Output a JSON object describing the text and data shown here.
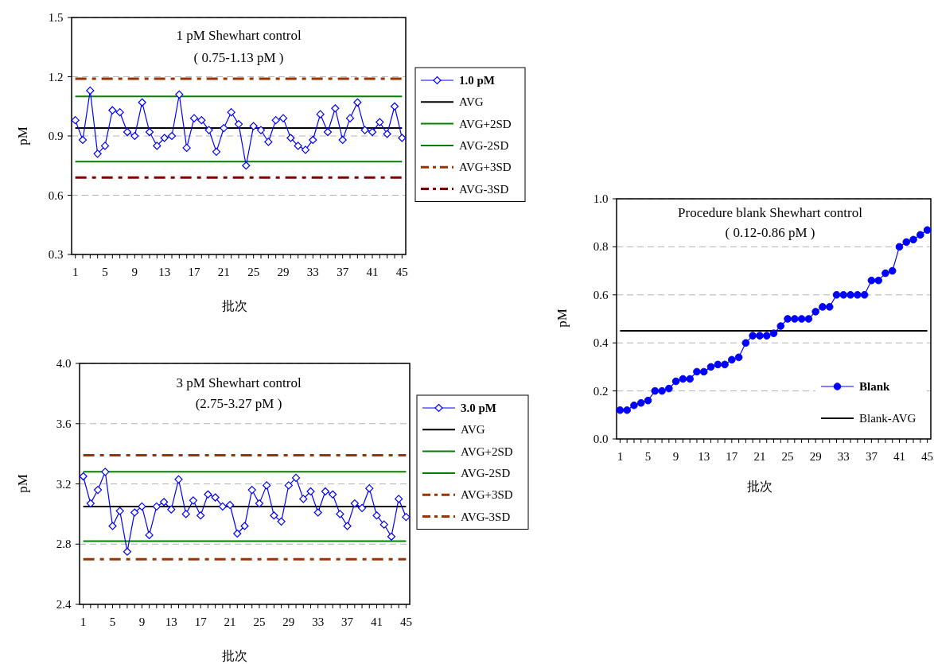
{
  "chart_data": [
    {
      "type": "line",
      "title": "1 pM Shewhart control",
      "subtitle": "( 0.75-1.13 pM )",
      "xlabel": "批次",
      "ylabel": "pM",
      "categories": [
        "1",
        null,
        null,
        null,
        "5",
        null,
        null,
        null,
        "9",
        null,
        null,
        null,
        "13",
        null,
        null,
        null,
        "17",
        null,
        null,
        null,
        "21",
        null,
        null,
        null,
        "25",
        null,
        null,
        null,
        "29",
        null,
        null,
        null,
        "33",
        null,
        null,
        null,
        "37",
        null,
        null,
        null,
        "41",
        null,
        null,
        null,
        "45"
      ],
      "series": [
        {
          "name": "1.0 pM",
          "color": "#0000ff",
          "values": [
            0.98,
            0.88,
            1.13,
            0.81,
            0.85,
            1.03,
            1.02,
            0.92,
            0.9,
            1.07,
            0.92,
            0.85,
            0.89,
            0.9,
            1.11,
            0.84,
            0.99,
            0.98,
            0.93,
            0.82,
            0.94,
            1.02,
            0.96,
            0.75,
            0.95,
            0.93,
            0.87,
            0.98,
            0.99,
            0.89,
            0.85,
            0.83,
            0.88,
            1.01,
            0.92,
            1.04,
            0.88,
            0.99,
            1.07,
            0.93,
            0.92,
            0.97,
            0.91,
            1.05,
            0.89
          ]
        }
      ],
      "ref_lines": [
        {
          "axis": "y",
          "value": 0.94,
          "label": "AVG",
          "color": "#000000",
          "line_style": "solid"
        },
        {
          "axis": "y",
          "value": 1.1,
          "label": "AVG+2SD",
          "color": "#008000",
          "line_style": "solid"
        },
        {
          "axis": "y",
          "value": 0.77,
          "label": "AVG-2SD",
          "color": "#008000",
          "line_style": "solid"
        },
        {
          "axis": "y",
          "value": 1.19,
          "label": "AVG+3SD",
          "color": "#993300",
          "line_style": "dashdot"
        },
        {
          "axis": "y",
          "value": 0.69,
          "label": "AVG-3SD",
          "color": "#800000",
          "line_style": "dashdot"
        }
      ],
      "ylim": [
        0.3,
        1.5
      ],
      "yticks": [
        0.3,
        0.6,
        0.9,
        1.2,
        1.5
      ],
      "grid": "y",
      "legend": "right",
      "marker": "diamond"
    },
    {
      "type": "line",
      "title": "3 pM Shewhart control",
      "subtitle": "(2.75-3.27 pM )",
      "xlabel": "批次",
      "ylabel": "pM",
      "categories": [
        "1",
        null,
        null,
        null,
        "5",
        null,
        null,
        null,
        "9",
        null,
        null,
        null,
        "13",
        null,
        null,
        null,
        "17",
        null,
        null,
        null,
        "21",
        null,
        null,
        null,
        "25",
        null,
        null,
        null,
        "29",
        null,
        null,
        null,
        "33",
        null,
        null,
        null,
        "37",
        null,
        null,
        null,
        "41",
        null,
        null,
        null,
        "45"
      ],
      "series": [
        {
          "name": "3.0 pM",
          "color": "#0000ff",
          "values": [
            3.25,
            3.07,
            3.16,
            3.28,
            2.92,
            3.02,
            2.75,
            3.01,
            3.05,
            2.86,
            3.05,
            3.08,
            3.03,
            3.23,
            3.0,
            3.09,
            2.99,
            3.13,
            3.11,
            3.05,
            3.06,
            2.87,
            2.92,
            3.16,
            3.07,
            3.19,
            2.99,
            2.95,
            3.19,
            3.24,
            3.1,
            3.15,
            3.01,
            3.15,
            3.13,
            3.0,
            2.92,
            3.07,
            3.04,
            3.17,
            2.99,
            2.93,
            2.85,
            3.1,
            2.98
          ]
        }
      ],
      "ref_lines": [
        {
          "axis": "y",
          "value": 3.05,
          "label": "AVG",
          "color": "#000000",
          "line_style": "solid"
        },
        {
          "axis": "y",
          "value": 3.28,
          "label": "AVG+2SD",
          "color": "#008000",
          "line_style": "solid"
        },
        {
          "axis": "y",
          "value": 2.82,
          "label": "AVG-2SD",
          "color": "#008000",
          "line_style": "solid"
        },
        {
          "axis": "y",
          "value": 3.39,
          "label": "AVG+3SD",
          "color": "#993300",
          "line_style": "dashdot"
        },
        {
          "axis": "y",
          "value": 2.7,
          "label": "AVG-3SD",
          "color": "#993300",
          "line_style": "dashdot"
        }
      ],
      "ylim": [
        2.4,
        4.0
      ],
      "yticks": [
        2.4,
        2.8,
        3.2,
        3.6,
        {
          "value": 4.0,
          "label": "4.0"
        }
      ],
      "grid": "y",
      "legend": "right",
      "marker": "diamond"
    },
    {
      "type": "line",
      "title": "Procedure blank Shewhart control",
      "subtitle": "( 0.12-0.86 pM )",
      "xlabel": "批次",
      "ylabel": "pM",
      "categories": [
        "1",
        null,
        null,
        null,
        "5",
        null,
        null,
        null,
        "9",
        null,
        null,
        null,
        "13",
        null,
        null,
        null,
        "17",
        null,
        null,
        null,
        "21",
        null,
        null,
        null,
        "25",
        null,
        null,
        null,
        "29",
        null,
        null,
        null,
        "33",
        null,
        null,
        null,
        "37",
        null,
        null,
        null,
        "41",
        null,
        null,
        null,
        "45"
      ],
      "series": [
        {
          "name": "Blank",
          "color": "#0000ff",
          "values": [
            0.12,
            0.12,
            0.14,
            0.15,
            0.16,
            0.2,
            0.2,
            0.21,
            0.24,
            0.25,
            0.25,
            0.28,
            0.28,
            0.3,
            0.31,
            0.31,
            0.33,
            0.34,
            0.4,
            0.43,
            0.43,
            0.43,
            0.44,
            0.47,
            0.5,
            0.5,
            0.5,
            0.5,
            0.53,
            0.55,
            0.55,
            0.6,
            0.6,
            0.6,
            0.6,
            0.6,
            0.66,
            0.66,
            0.69,
            0.7,
            0.8,
            0.82,
            0.83,
            0.85,
            0.87
          ]
        }
      ],
      "ref_lines": [
        {
          "axis": "y",
          "value": 0.45,
          "label": "Blank-AVG",
          "color": "#000000",
          "line_style": "solid"
        }
      ],
      "ylim": [
        0,
        1
      ],
      "yticks": [
        {
          "value": 0,
          "label": "0.0"
        },
        0.2,
        0.4,
        0.6,
        0.8,
        {
          "value": 1,
          "label": "1.0"
        }
      ],
      "grid": "y",
      "legend": "bottom right",
      "marker": "circle"
    }
  ]
}
